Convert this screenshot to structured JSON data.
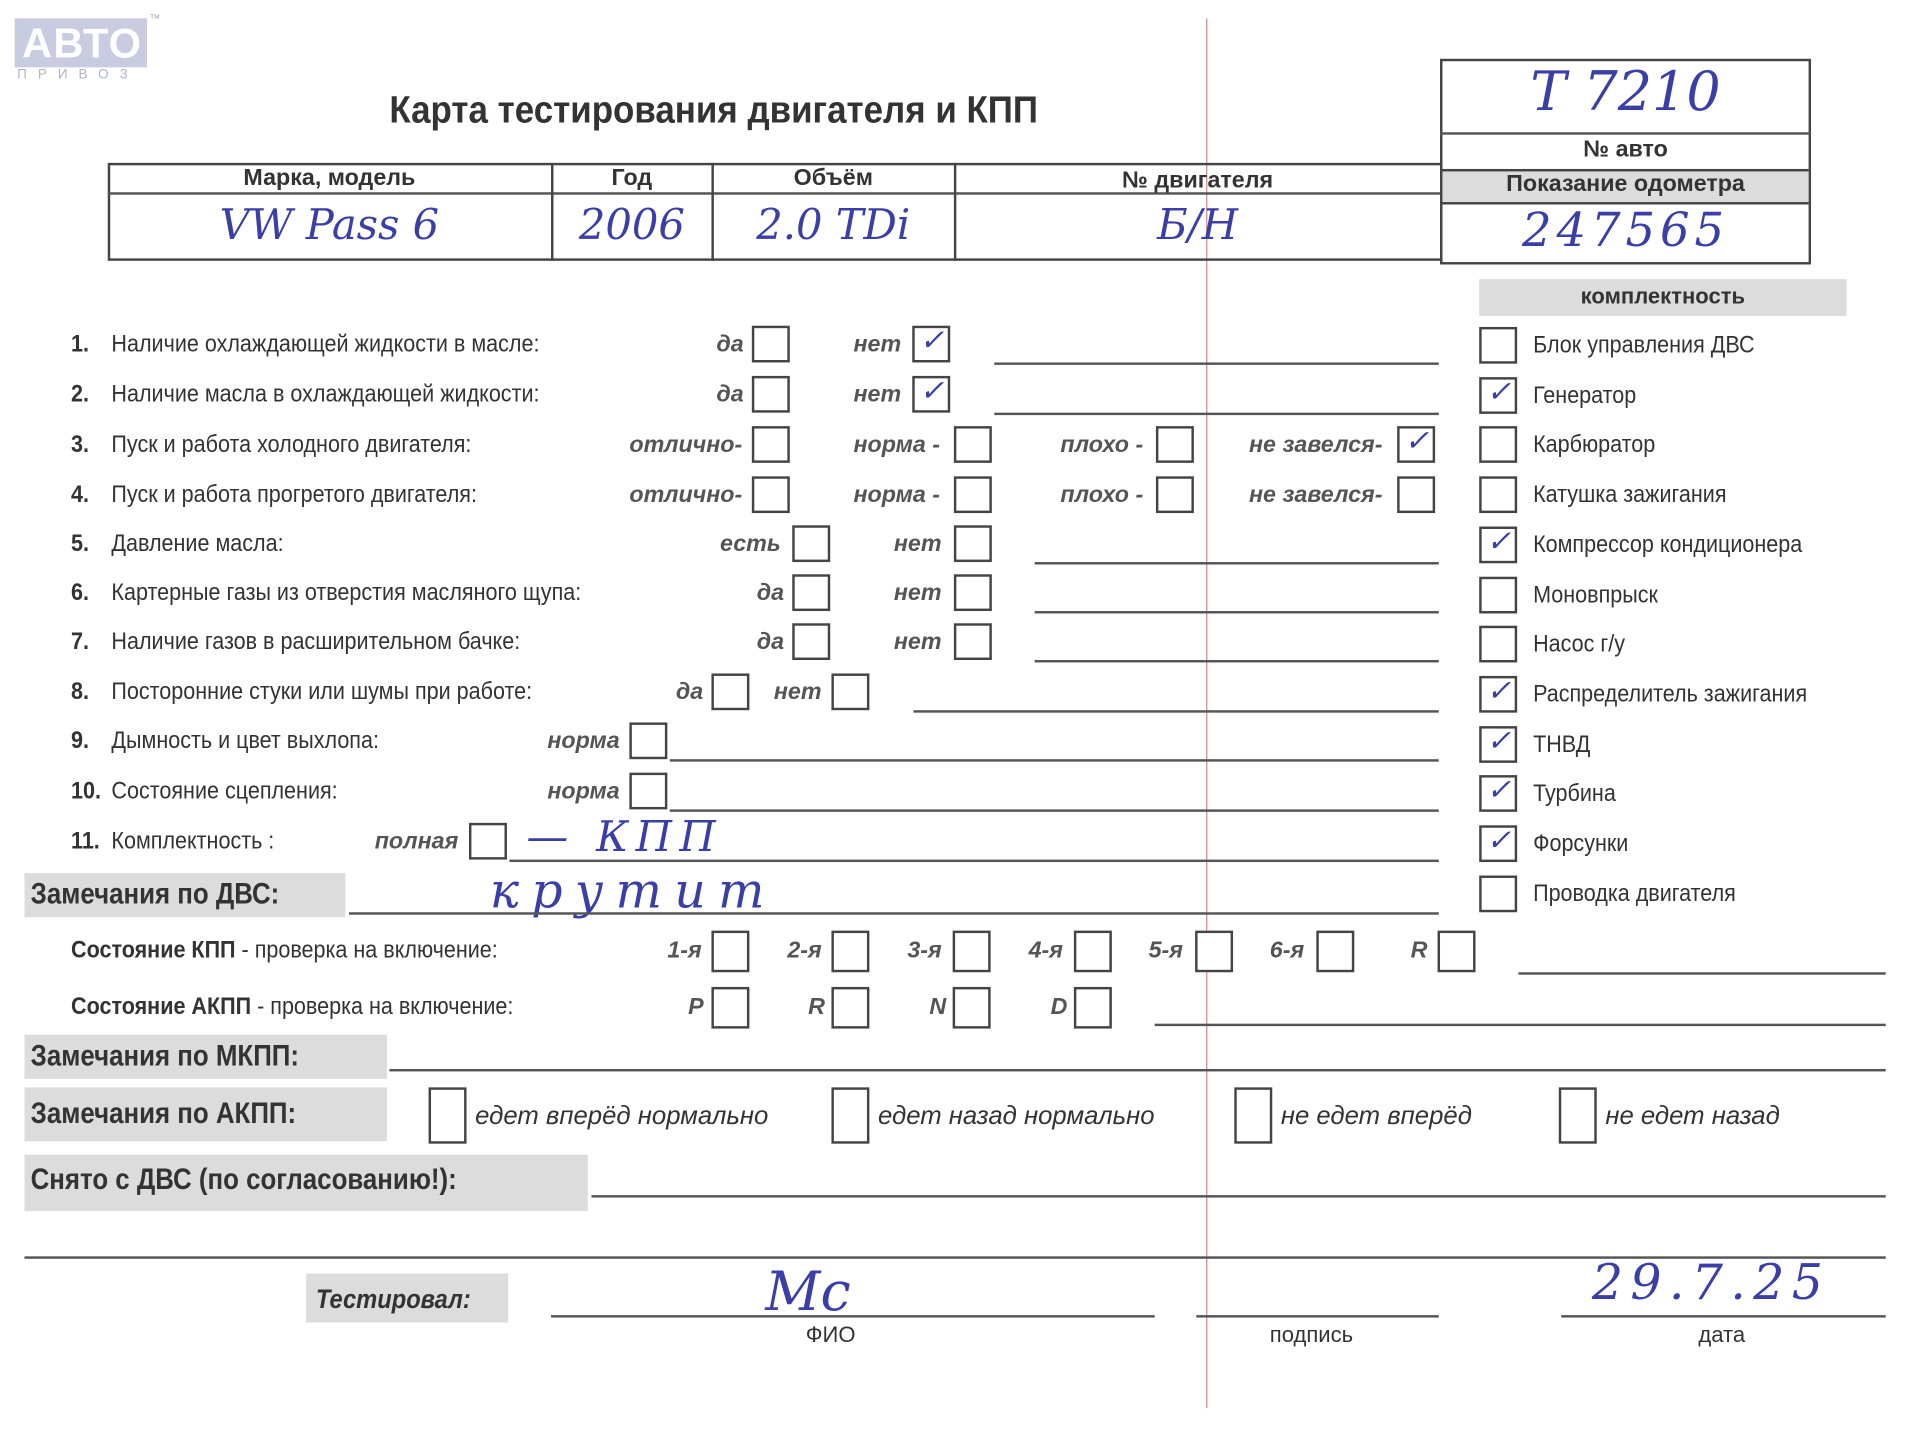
{
  "logo": {
    "main": "АВТО",
    "sub": "ПРИВОЗ",
    "tm": "™"
  },
  "title": "Карта тестирования двигателя  и КПП",
  "car_number": {
    "value": "Т 7210",
    "label": "№ авто"
  },
  "odometer": {
    "label": "Показание одометра",
    "value": "247565"
  },
  "header_table": {
    "columns": [
      "Марка, модель",
      "Год",
      "Объём",
      "№ двигателя"
    ],
    "values": [
      "VW Pass 6",
      "2006",
      "2.0 TDi",
      "Б/Н"
    ]
  },
  "questions": [
    {
      "num": "1.",
      "text": "Наличие охлаждающей жидкости в масле:",
      "options": [
        {
          "label": "да",
          "checked": false
        },
        {
          "label": "нет",
          "checked": true
        }
      ]
    },
    {
      "num": "2.",
      "text": "Наличие масла в охлаждающей жидкости:",
      "options": [
        {
          "label": "да",
          "checked": false
        },
        {
          "label": "нет",
          "checked": true
        }
      ]
    },
    {
      "num": "3.",
      "text": "Пуск и работа холодного двигателя:",
      "options": [
        {
          "label": "отлично-",
          "checked": false
        },
        {
          "label": "норма -",
          "checked": false
        },
        {
          "label": "плохо -",
          "checked": false
        },
        {
          "label": "не завелся-",
          "checked": true
        }
      ]
    },
    {
      "num": "4.",
      "text": "Пуск и работа прогретого двигателя:",
      "options": [
        {
          "label": "отлично-",
          "checked": false
        },
        {
          "label": "норма -",
          "checked": false
        },
        {
          "label": "плохо -",
          "checked": false
        },
        {
          "label": "не завелся-",
          "checked": false
        }
      ]
    },
    {
      "num": "5.",
      "text": "Давление масла:",
      "options": [
        {
          "label": "есть",
          "checked": false
        },
        {
          "label": "нет",
          "checked": false
        }
      ]
    },
    {
      "num": "6.",
      "text": "Картерные газы из отверстия масляного щупа:",
      "options": [
        {
          "label": "да",
          "checked": false
        },
        {
          "label": "нет",
          "checked": false
        }
      ]
    },
    {
      "num": "7.",
      "text": "Наличие газов в расширительном бачке:",
      "options": [
        {
          "label": "да",
          "checked": false
        },
        {
          "label": "нет",
          "checked": false
        }
      ]
    },
    {
      "num": "8.",
      "text": "Посторонние стуки или шумы при работе:",
      "options": [
        {
          "label": "да",
          "checked": false
        },
        {
          "label": "нет",
          "checked": false
        }
      ]
    },
    {
      "num": "9.",
      "text": "Дымность и цвет выхлопа:",
      "options": [
        {
          "label": "норма",
          "checked": false
        }
      ]
    },
    {
      "num": "10.",
      "text": "Состояние сцепления:",
      "options": [
        {
          "label": "норма",
          "checked": false
        }
      ]
    },
    {
      "num": "11.",
      "text": "Комплектность :",
      "options": [
        {
          "label": "полная",
          "checked": false
        }
      ],
      "note": "— КПП"
    }
  ],
  "completeness": {
    "title": "комплектность",
    "items": [
      {
        "label": "Блок управления ДВС",
        "checked": false
      },
      {
        "label": "Генератор",
        "checked": true
      },
      {
        "label": "Карбюратор",
        "checked": false
      },
      {
        "label": "Катушка зажигания",
        "checked": false
      },
      {
        "label": "Компрессор кондиционера",
        "checked": true
      },
      {
        "label": "Моновпрыск",
        "checked": false
      },
      {
        "label": "Насос г/у",
        "checked": false
      },
      {
        "label": "Распределитель зажигания",
        "checked": true
      },
      {
        "label": "ТНВД",
        "checked": true
      },
      {
        "label": "Турбина",
        "checked": true
      },
      {
        "label": "Форсунки",
        "checked": true
      },
      {
        "label": "Проводка двигателя",
        "checked": false
      }
    ]
  },
  "engine_remarks": {
    "label": "Замечания по ДВС:",
    "value": "крутит"
  },
  "mkpp_state": {
    "label_bold": "Состояние КПП",
    "label_rest": " - проверка на включение:",
    "gears": [
      "1-я",
      "2-я",
      "3-я",
      "4-я",
      "5-я",
      "6-я",
      "R"
    ]
  },
  "akpp_state": {
    "label_bold": "Состояние АКПП",
    "label_rest": " - проверка на включение:",
    "gears": [
      "P",
      "R",
      "N",
      "D"
    ]
  },
  "mkpp_remarks": {
    "label": "Замечания по МКПП:"
  },
  "akpp_remarks": {
    "label": "Замечания по АКПП:",
    "options": [
      "едет вперёд нормально",
      "едет назад нормально",
      "не едет вперёд",
      "не едет назад"
    ]
  },
  "removed": {
    "label": "Снято с ДВС (по согласованию!):"
  },
  "tested": {
    "label": "Тестировал:",
    "name_caption": "ФИО",
    "sign_caption": "подпись",
    "date_caption": "дата",
    "name_value": "Мс",
    "date_value": "29.7.25"
  },
  "check_mark": "✓"
}
